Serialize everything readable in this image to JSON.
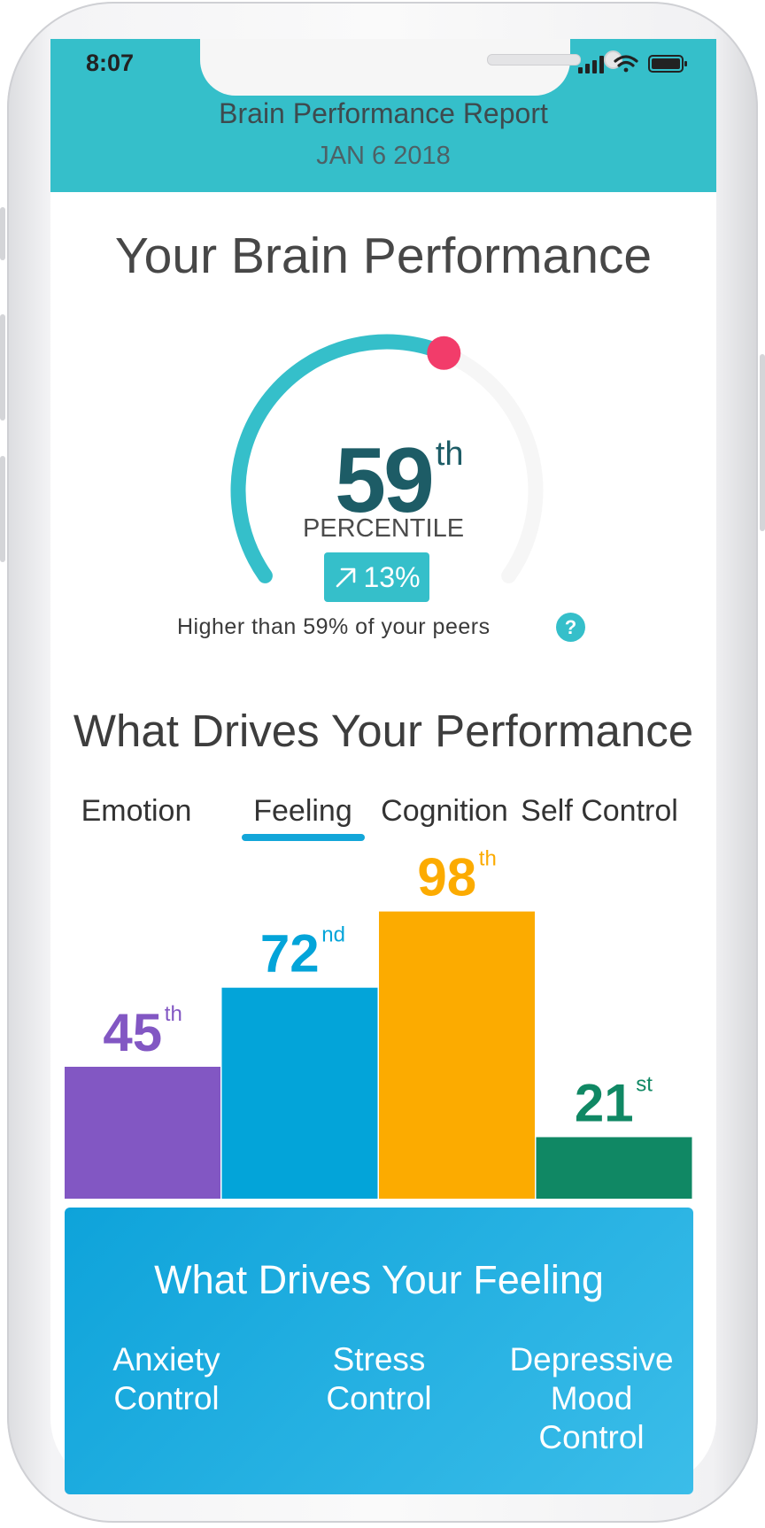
{
  "status_bar": {
    "time": "8:07"
  },
  "header": {
    "title": "Brain Performance Report",
    "date": "JAN 6 2018"
  },
  "performance": {
    "heading": "Your Brain Performance",
    "percentile_value": "59",
    "percentile_suffix": "th",
    "percentile_label": "PERCENTILE",
    "percentile_level": 0.59,
    "change": "13%",
    "peers_text": "Higher than 59% of your peers",
    "help_label": "?"
  },
  "drivers": {
    "heading": "What Drives Your Performance",
    "tabs": [
      "Emotion",
      "Feeling",
      "Cognition",
      "Self Control"
    ],
    "active_tab": "Feeling"
  },
  "chart_data": {
    "type": "bar",
    "categories": [
      "Emotion",
      "Feeling",
      "Cognition",
      "Self Control"
    ],
    "values": [
      45,
      72,
      98,
      21
    ],
    "labels": [
      "45",
      "72",
      "98",
      "21"
    ],
    "suffixes": [
      "th",
      "nd",
      "th",
      "st"
    ],
    "colors": [
      "#8257c3",
      "#03a4d9",
      "#fcab00",
      "#108864"
    ],
    "ylim": [
      0,
      100
    ]
  },
  "feeling_panel": {
    "title": "What Drives Your Feeling",
    "items": [
      "Anxiety\nControl",
      "Stress\nControl",
      "Depressive\nMood\nControl"
    ]
  },
  "colors": {
    "accent": "#35bfca",
    "gauge_marker": "#f23c6a",
    "percentile_number": "#1d5c66",
    "tab_underline": "#13a6d9"
  }
}
